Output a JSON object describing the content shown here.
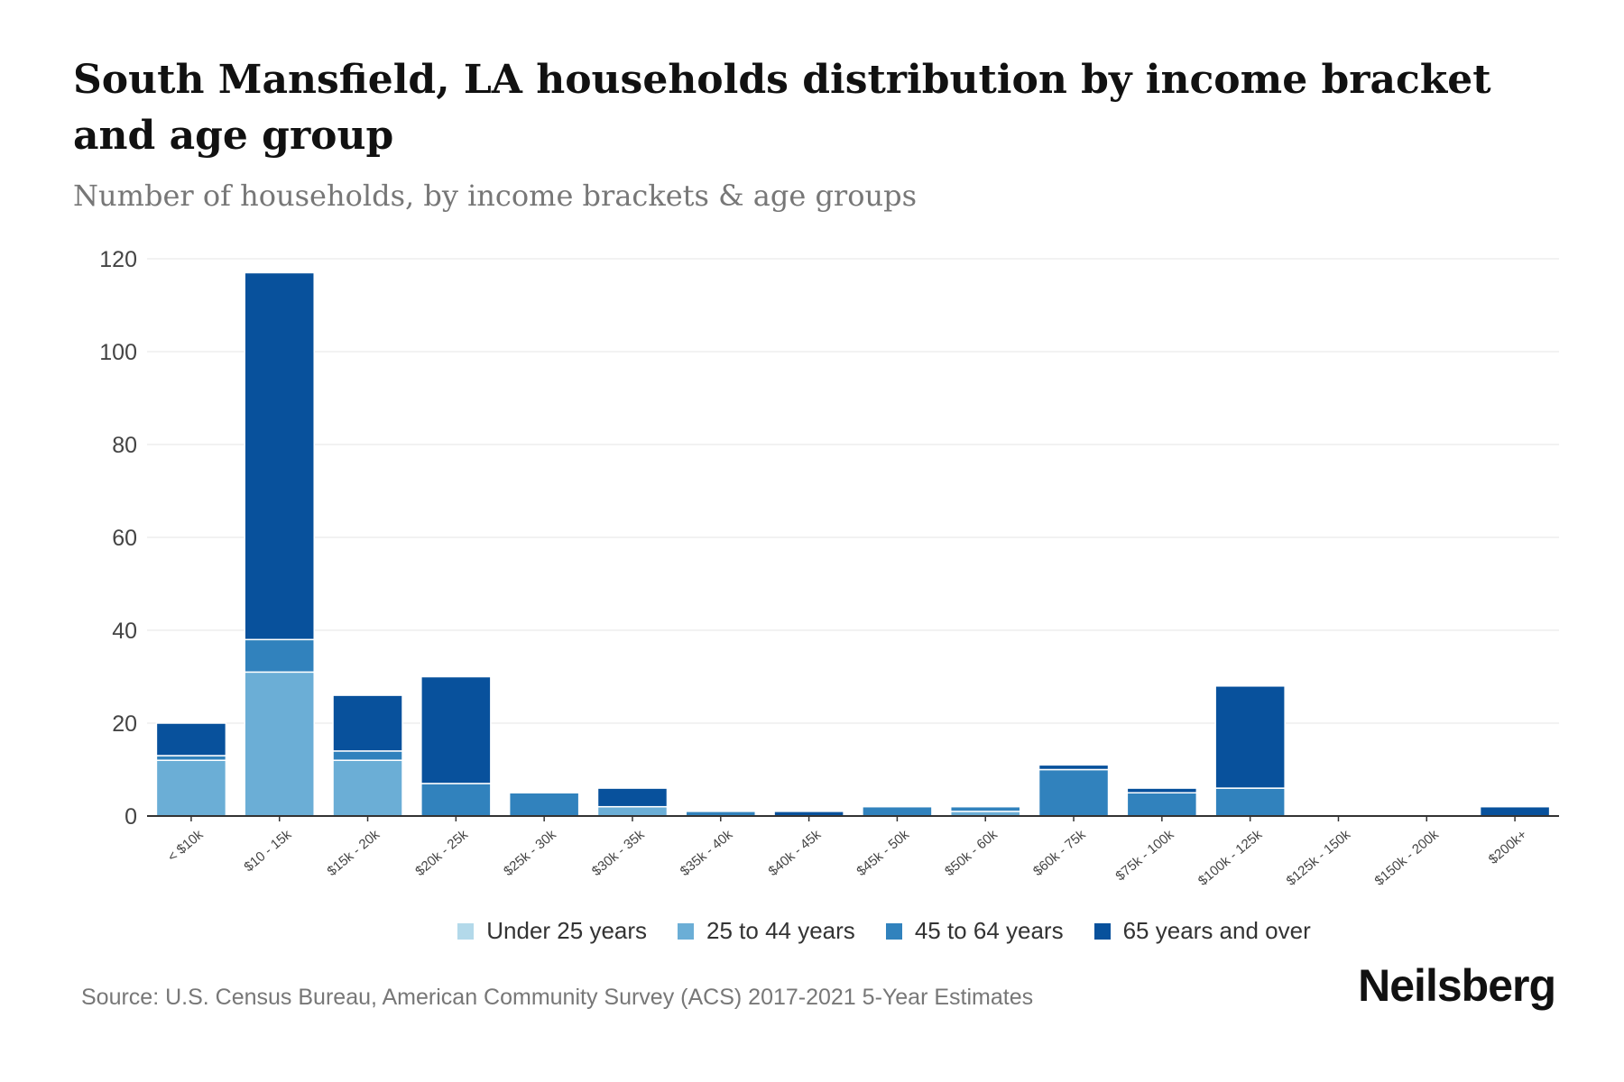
{
  "chart_data": {
    "type": "bar",
    "stacked": true,
    "title": "South Mansfield, LA households distribution by income bracket and age group",
    "subtitle": "Number of households, by income brackets & age groups",
    "xlabel": "",
    "ylabel": "",
    "ylim": [
      0,
      120
    ],
    "yticks": [
      0,
      20,
      40,
      60,
      80,
      100,
      120
    ],
    "grid": true,
    "legend_position": "bottom",
    "categories": [
      "< $10k",
      "$10 - 15k",
      "$15k - 20k",
      "$20k - 25k",
      "$25k - 30k",
      "$30k - 35k",
      "$35k - 40k",
      "$40k - 45k",
      "$45k - 50k",
      "$50k - 60k",
      "$60k - 75k",
      "$75k - 100k",
      "$100k - 125k",
      "$125k - 150k",
      "$150k - 200k",
      "$200k+"
    ],
    "series": [
      {
        "name": "Under 25 years",
        "color": "#b3d9ea",
        "values": [
          0,
          0,
          0,
          0,
          0,
          0,
          0,
          0,
          0,
          0,
          0,
          0,
          0,
          0,
          0,
          0
        ]
      },
      {
        "name": "25 to 44 years",
        "color": "#6baed6",
        "values": [
          12,
          31,
          12,
          0,
          0,
          2,
          0,
          0,
          0,
          1,
          0,
          0,
          0,
          0,
          0,
          0
        ]
      },
      {
        "name": "45 to 64 years",
        "color": "#3182bd",
        "values": [
          1,
          7,
          2,
          7,
          5,
          0,
          1,
          0,
          2,
          1,
          10,
          5,
          6,
          0,
          0,
          0
        ]
      },
      {
        "name": "65 years and over",
        "color": "#08519c",
        "values": [
          7,
          79,
          12,
          23,
          0,
          4,
          0,
          1,
          0,
          0,
          1,
          1,
          22,
          0,
          0,
          2
        ]
      }
    ]
  },
  "source": "Source: U.S. Census Bureau, American Community Survey (ACS) 2017-2021 5-Year Estimates",
  "logo": "Neilsberg"
}
